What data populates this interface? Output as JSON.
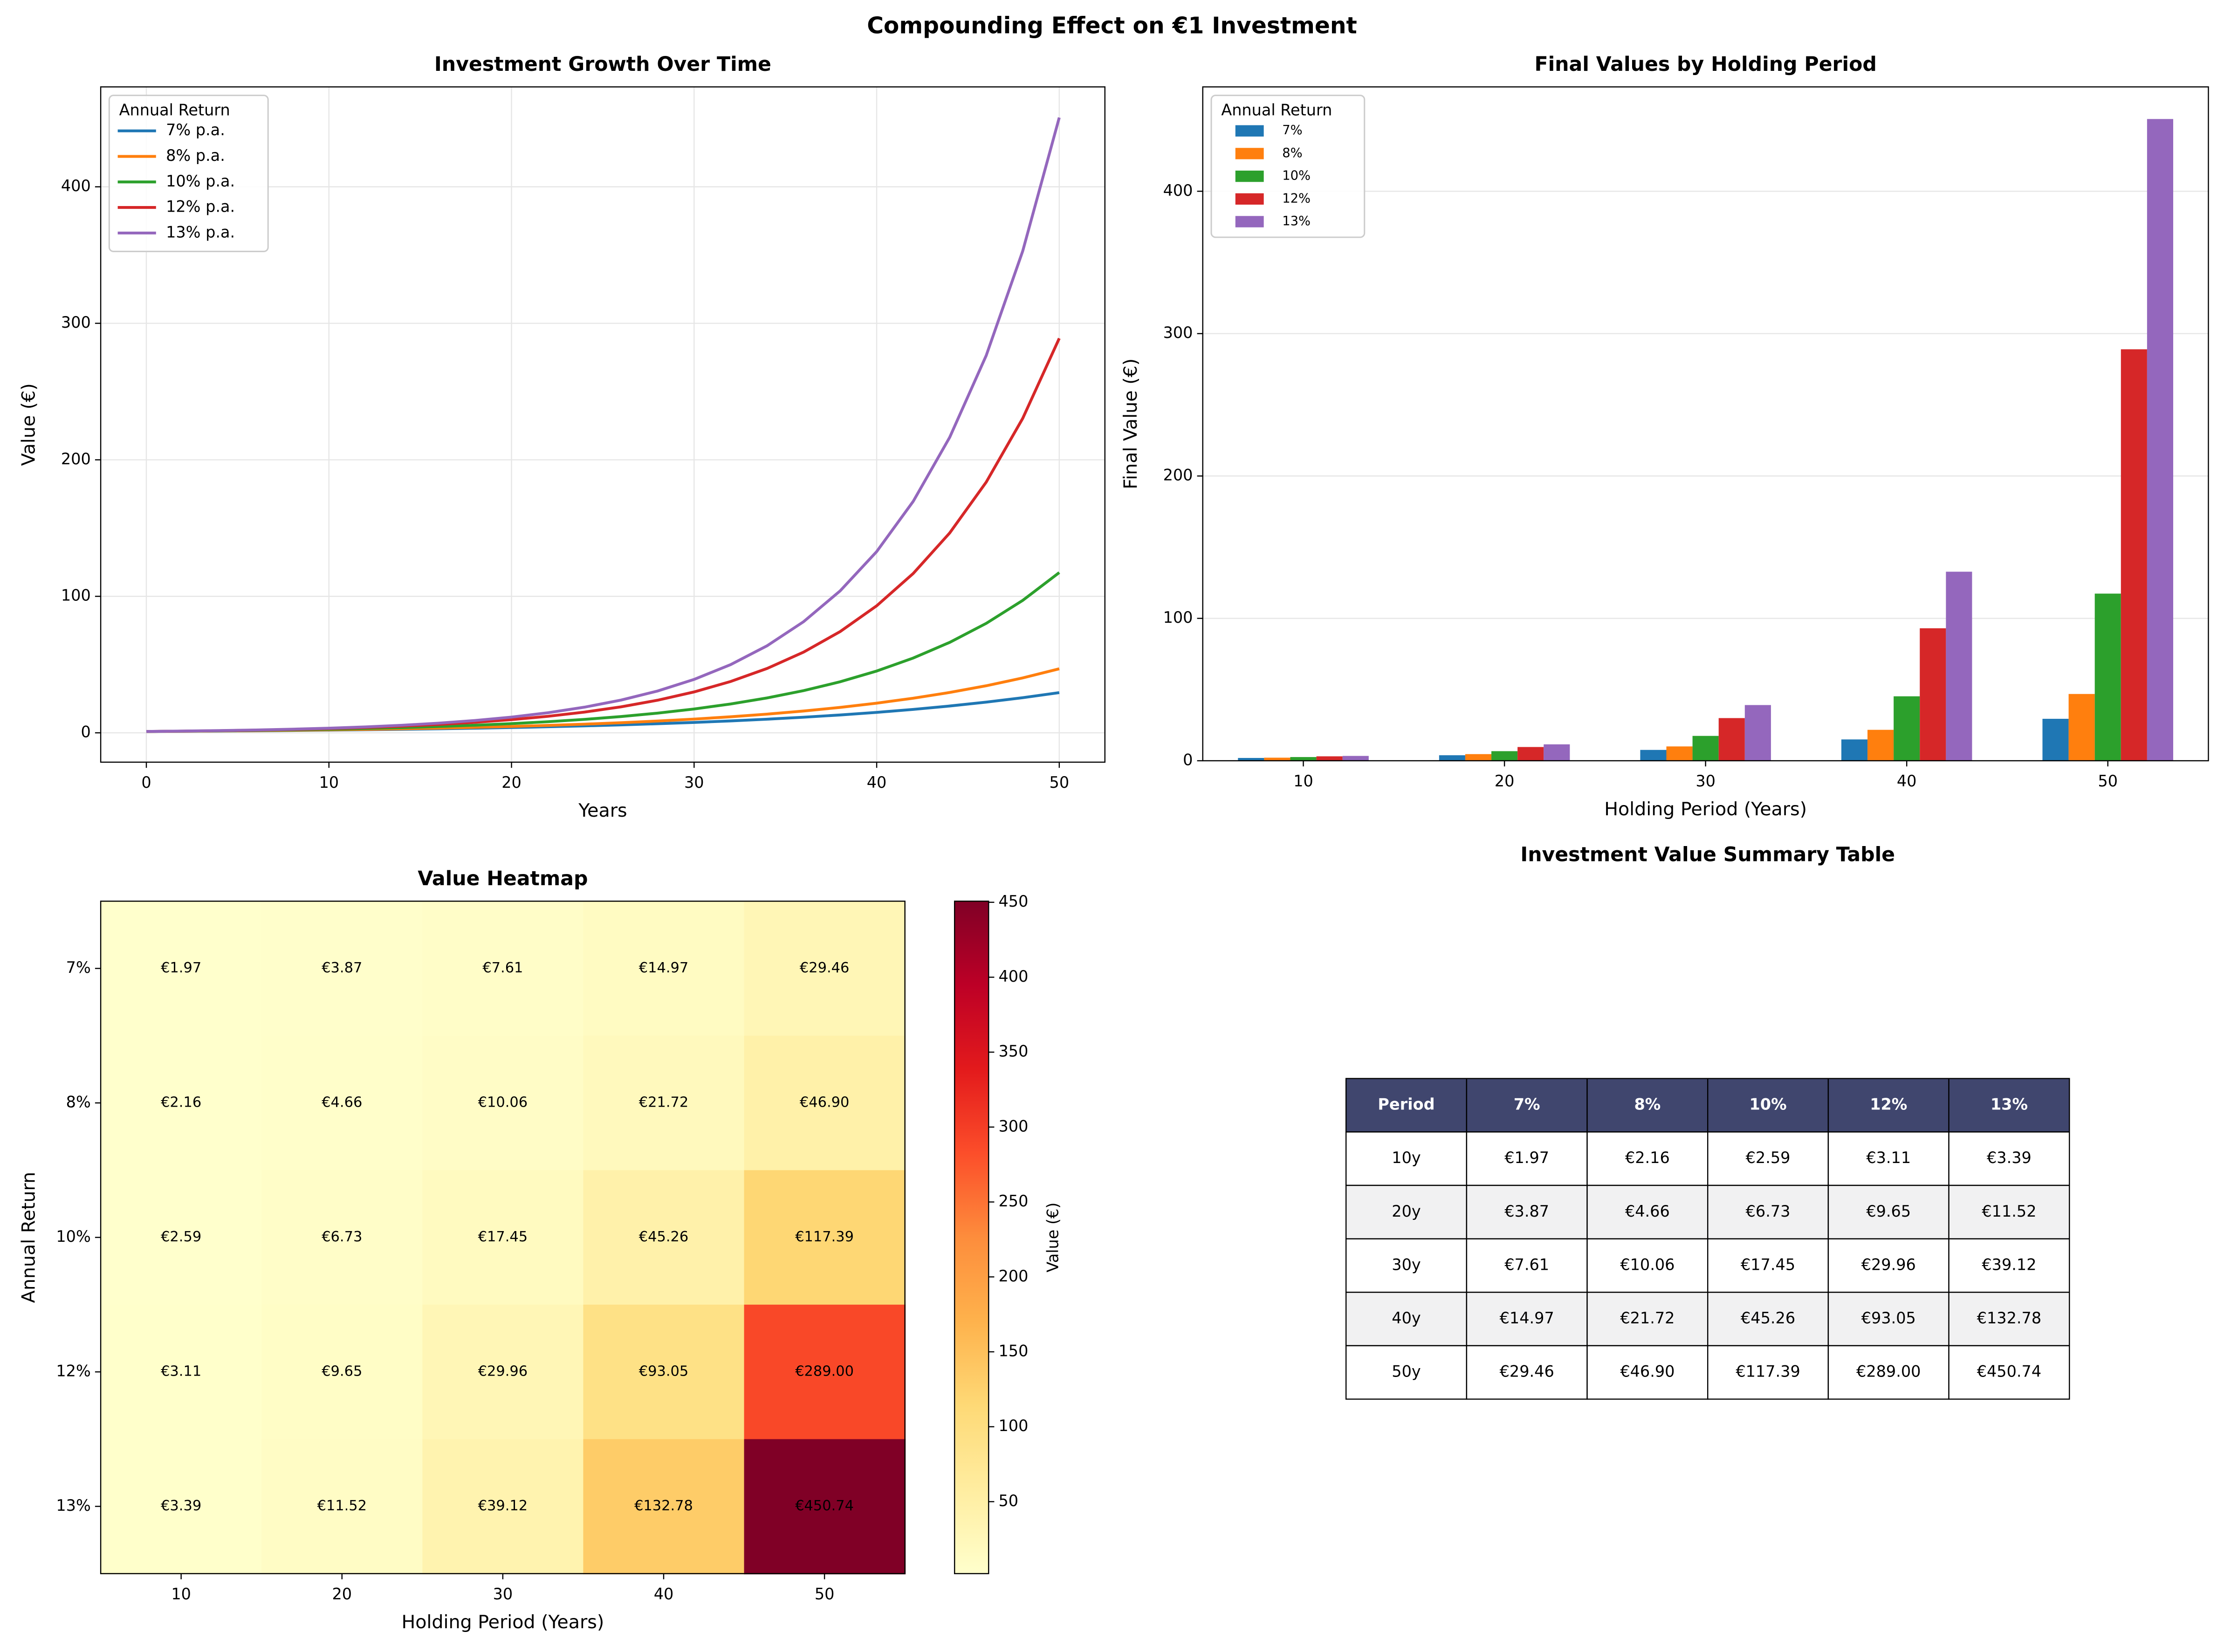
{
  "title": "Compounding Effect on €1 Investment",
  "chart_data": [
    {
      "type": "line",
      "title": "Investment Growth Over Time",
      "xlabel": "Years",
      "ylabel": "Value (€)",
      "x": [
        0,
        2,
        4,
        6,
        8,
        10,
        12,
        14,
        16,
        18,
        20,
        22,
        24,
        26,
        28,
        30,
        32,
        34,
        36,
        38,
        40,
        42,
        44,
        46,
        48,
        50
      ],
      "xlim": [
        -2.5,
        52.5
      ],
      "xticks": [
        0,
        10,
        20,
        30,
        40,
        50
      ],
      "ylim": [
        -21.5,
        473.2
      ],
      "yticks": [
        0,
        100,
        200,
        300,
        400
      ],
      "grid": true,
      "legend": "upper left",
      "legend_title": "Annual Return",
      "series": [
        {
          "name": "7% p.a.",
          "color": "#1f77b4",
          "values": [
            1,
            1.14,
            1.31,
            1.5,
            1.72,
            1.97,
            2.25,
            2.58,
            2.95,
            3.38,
            3.87,
            4.43,
            5.07,
            5.81,
            6.65,
            7.61,
            8.72,
            9.98,
            11.42,
            13.08,
            14.97,
            17.14,
            19.63,
            22.47,
            25.73,
            29.46
          ]
        },
        {
          "name": "8% p.a.",
          "color": "#ff7f0e",
          "values": [
            1,
            1.17,
            1.36,
            1.59,
            1.85,
            2.16,
            2.52,
            2.94,
            3.43,
            4,
            4.66,
            5.44,
            6.34,
            7.4,
            8.63,
            10.06,
            11.74,
            13.69,
            15.97,
            18.63,
            21.72,
            25.34,
            29.56,
            34.47,
            40.21,
            46.9
          ]
        },
        {
          "name": "10% p.a.",
          "color": "#2ca02c",
          "values": [
            1,
            1.21,
            1.46,
            1.77,
            2.14,
            2.59,
            3.14,
            3.8,
            4.6,
            5.56,
            6.73,
            8.14,
            9.85,
            11.92,
            14.42,
            17.45,
            21.11,
            25.55,
            30.91,
            37.4,
            45.26,
            54.76,
            66.26,
            80.18,
            97.02,
            117.39
          ]
        },
        {
          "name": "12% p.a.",
          "color": "#d62728",
          "values": [
            1,
            1.25,
            1.57,
            1.97,
            2.48,
            3.11,
            3.9,
            4.89,
            6.13,
            7.69,
            9.65,
            12.1,
            15.18,
            19.04,
            23.88,
            29.96,
            37.58,
            47.14,
            59.14,
            74.18,
            93.05,
            116.72,
            146.42,
            183.67,
            230.39,
            289
          ]
        },
        {
          "name": "13% p.a.",
          "color": "#9467bd",
          "values": [
            1,
            1.28,
            1.63,
            2.08,
            2.66,
            3.39,
            4.33,
            5.53,
            7.07,
            9.02,
            11.52,
            14.71,
            18.79,
            23.99,
            30.63,
            39.12,
            49.95,
            63.78,
            81.44,
            103.99,
            132.78,
            169.55,
            216.5,
            276.44,
            352.99,
            450.74
          ]
        }
      ]
    },
    {
      "type": "bar",
      "title": "Final Values by Holding Period",
      "xlabel": "Holding Period (Years)",
      "ylabel": "Final Value (€)",
      "categories": [
        "10",
        "20",
        "30",
        "40",
        "50"
      ],
      "ylim": [
        0,
        473.3
      ],
      "yticks": [
        0,
        100,
        200,
        300,
        400
      ],
      "grid": true,
      "legend": "upper left",
      "legend_title": "Annual Return",
      "series": [
        {
          "name": "7%",
          "color": "#1f77b4",
          "values": [
            1.97,
            3.87,
            7.61,
            14.97,
            29.46
          ]
        },
        {
          "name": "8%",
          "color": "#ff7f0e",
          "values": [
            2.16,
            4.66,
            10.06,
            21.72,
            46.9
          ]
        },
        {
          "name": "10%",
          "color": "#2ca02c",
          "values": [
            2.59,
            6.73,
            17.45,
            45.26,
            117.39
          ]
        },
        {
          "name": "12%",
          "color": "#d62728",
          "values": [
            3.11,
            9.65,
            29.96,
            93.05,
            289
          ]
        },
        {
          "name": "13%",
          "color": "#9467bd",
          "values": [
            3.39,
            11.52,
            39.12,
            132.78,
            450.74
          ]
        }
      ]
    },
    {
      "type": "heatmap",
      "title": "Value Heatmap",
      "xlabel": "Holding Period (Years)",
      "ylabel": "Annual Return",
      "xcategories": [
        "10",
        "20",
        "30",
        "40",
        "50"
      ],
      "ycategories": [
        "7%",
        "8%",
        "10%",
        "12%",
        "13%"
      ],
      "values": [
        [
          1.97,
          3.87,
          7.61,
          14.97,
          29.46
        ],
        [
          2.16,
          4.66,
          10.06,
          21.72,
          46.9
        ],
        [
          2.59,
          6.73,
          17.45,
          45.26,
          117.39
        ],
        [
          3.11,
          9.65,
          29.96,
          93.05,
          289
        ],
        [
          3.39,
          11.52,
          39.12,
          132.78,
          450.74
        ]
      ],
      "value_labels": [
        [
          "€1.97",
          "€3.87",
          "€7.61",
          "€14.97",
          "€29.46"
        ],
        [
          "€2.16",
          "€4.66",
          "€10.06",
          "€21.72",
          "€46.90"
        ],
        [
          "€2.59",
          "€6.73",
          "€17.45",
          "€45.26",
          "€117.39"
        ],
        [
          "€3.11",
          "€9.65",
          "€29.96",
          "€93.05",
          "€289.00"
        ],
        [
          "€3.39",
          "€11.52",
          "€39.12",
          "€132.78",
          "€450.74"
        ]
      ],
      "colormap": [
        "#ffffcc",
        "#ffeda0",
        "#fed976",
        "#feb24c",
        "#fd8d3c",
        "#fc4e2a",
        "#e31a1c",
        "#bd0026",
        "#800026"
      ],
      "clim": [
        1.97,
        450.74
      ],
      "cticks": [
        50,
        100,
        150,
        200,
        250,
        300,
        350,
        400,
        450
      ],
      "colorbar_label": "Value (€)"
    },
    {
      "type": "table",
      "title": "Investment Value Summary Table",
      "header": [
        "Period",
        "7%",
        "8%",
        "10%",
        "12%",
        "13%"
      ],
      "rows": [
        [
          "10y",
          "€1.97",
          "€2.16",
          "€2.59",
          "€3.11",
          "€3.39"
        ],
        [
          "20y",
          "€3.87",
          "€4.66",
          "€6.73",
          "€9.65",
          "€11.52"
        ],
        [
          "30y",
          "€7.61",
          "€10.06",
          "€17.45",
          "€29.96",
          "€39.12"
        ],
        [
          "40y",
          "€14.97",
          "€21.72",
          "€45.26",
          "€93.05",
          "€132.78"
        ],
        [
          "50y",
          "€29.46",
          "€46.90",
          "€117.39",
          "€289.00",
          "€450.74"
        ]
      ],
      "header_color": "#40466e",
      "stripe_color": "#f1f1f2"
    }
  ]
}
